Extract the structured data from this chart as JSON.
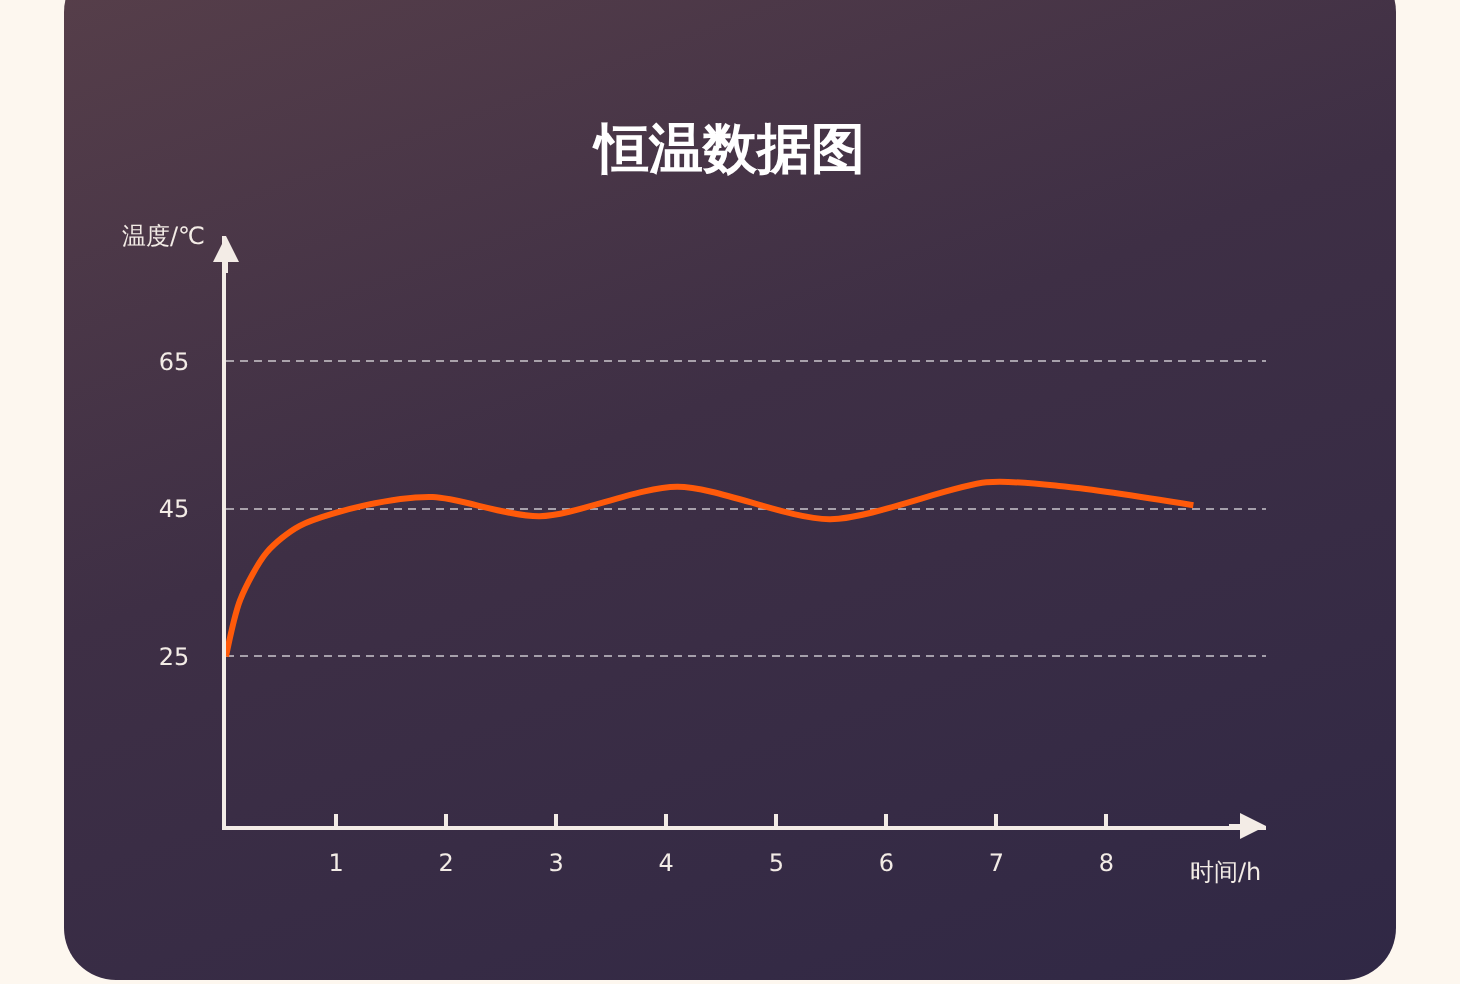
{
  "chart_data": {
    "type": "line",
    "title": "恒温数据图",
    "xlabel": "时间/h",
    "ylabel": "温度/℃",
    "x": [
      0,
      0.13,
      0.37,
      0.67,
      1.27,
      1.88,
      2.85,
      4.1,
      5.49,
      6.91,
      7.64,
      8.79
    ],
    "series": [
      {
        "color": "#ff5a0a",
        "values": [
          25,
          32.7,
          39.1,
          42.7,
          45.5,
          46.6,
          44,
          48,
          43.6,
          48.6,
          48,
          45.5
        ]
      }
    ],
    "xlim": [
      0,
      9.45
    ],
    "xticks": [
      1,
      2,
      3,
      4,
      5,
      6,
      7,
      8
    ],
    "ylim": [
      2,
      82
    ],
    "yticks": [
      25,
      45,
      65
    ],
    "grid": "y",
    "line_style": "solid",
    "marker": "none"
  }
}
